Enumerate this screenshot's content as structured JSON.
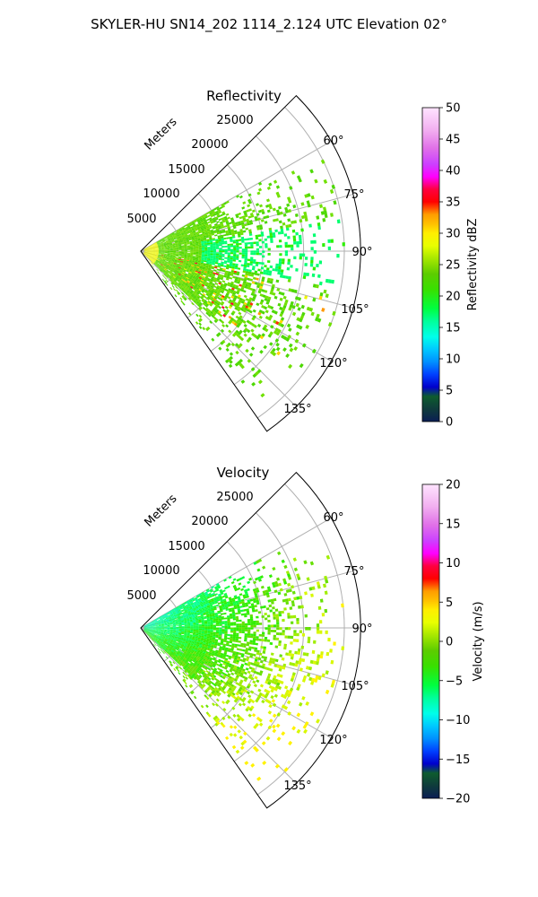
{
  "suptitle": "SKYLER-HU  SN14_202  1114_2.124 UTC Elevation 02°",
  "chart_data": [
    {
      "type": "heatmap",
      "subtype": "polar-sector (PPI radar scan)",
      "title": "Reflectivity",
      "radial_axis_label": "Meters",
      "radial_ticks": [
        5000,
        10000,
        15000,
        20000,
        25000
      ],
      "radial_tick_labels": [
        "5000",
        "10000",
        "15000",
        "20000",
        "25000"
      ],
      "r_range": [
        0,
        27000
      ],
      "angle_ticks_deg": [
        60,
        75,
        90,
        105,
        120,
        135
      ],
      "angle_tick_labels": [
        "60°",
        "75°",
        "90°",
        "105°",
        "120°",
        "135°"
      ],
      "angle_range_deg": [
        45,
        145
      ],
      "grid": true,
      "colorbar": {
        "label": "Reflectivity dBZ",
        "range": [
          0,
          50
        ],
        "ticks": [
          0,
          5,
          10,
          15,
          20,
          25,
          30,
          35,
          40,
          45,
          50
        ],
        "tick_labels": [
          "0",
          "5",
          "10",
          "15",
          "20",
          "25",
          "30",
          "35",
          "40",
          "45",
          "50"
        ]
      },
      "field_description": "Echo fills the sector out to ~20–25 km, dominantly 15–22 dBZ with scattered 25–40 dBZ cells along ~105–125°"
    },
    {
      "type": "heatmap",
      "subtype": "polar-sector (PPI radar scan)",
      "title": "Velocity",
      "radial_axis_label": "Meters",
      "radial_ticks": [
        5000,
        10000,
        15000,
        20000,
        25000
      ],
      "radial_tick_labels": [
        "5000",
        "10000",
        "15000",
        "20000",
        "25000"
      ],
      "r_range": [
        0,
        27000
      ],
      "angle_ticks_deg": [
        60,
        75,
        90,
        105,
        120,
        135
      ],
      "angle_tick_labels": [
        "60°",
        "75°",
        "90°",
        "105°",
        "120°",
        "135°"
      ],
      "angle_range_deg": [
        45,
        145
      ],
      "grid": true,
      "colorbar": {
        "label": "Velocity (m/s)",
        "range": [
          -20,
          20
        ],
        "ticks": [
          -20,
          -15,
          -10,
          -5,
          0,
          5,
          10,
          15,
          20
        ],
        "tick_labels": [
          "−20",
          "−15",
          "−10",
          "−5",
          "0",
          "5",
          "10",
          "15",
          "20"
        ]
      },
      "field_description": "Near range about −10 to −5 m/s, increasing to about −2 to +2 m/s at far range and toward 120–140°"
    }
  ]
}
